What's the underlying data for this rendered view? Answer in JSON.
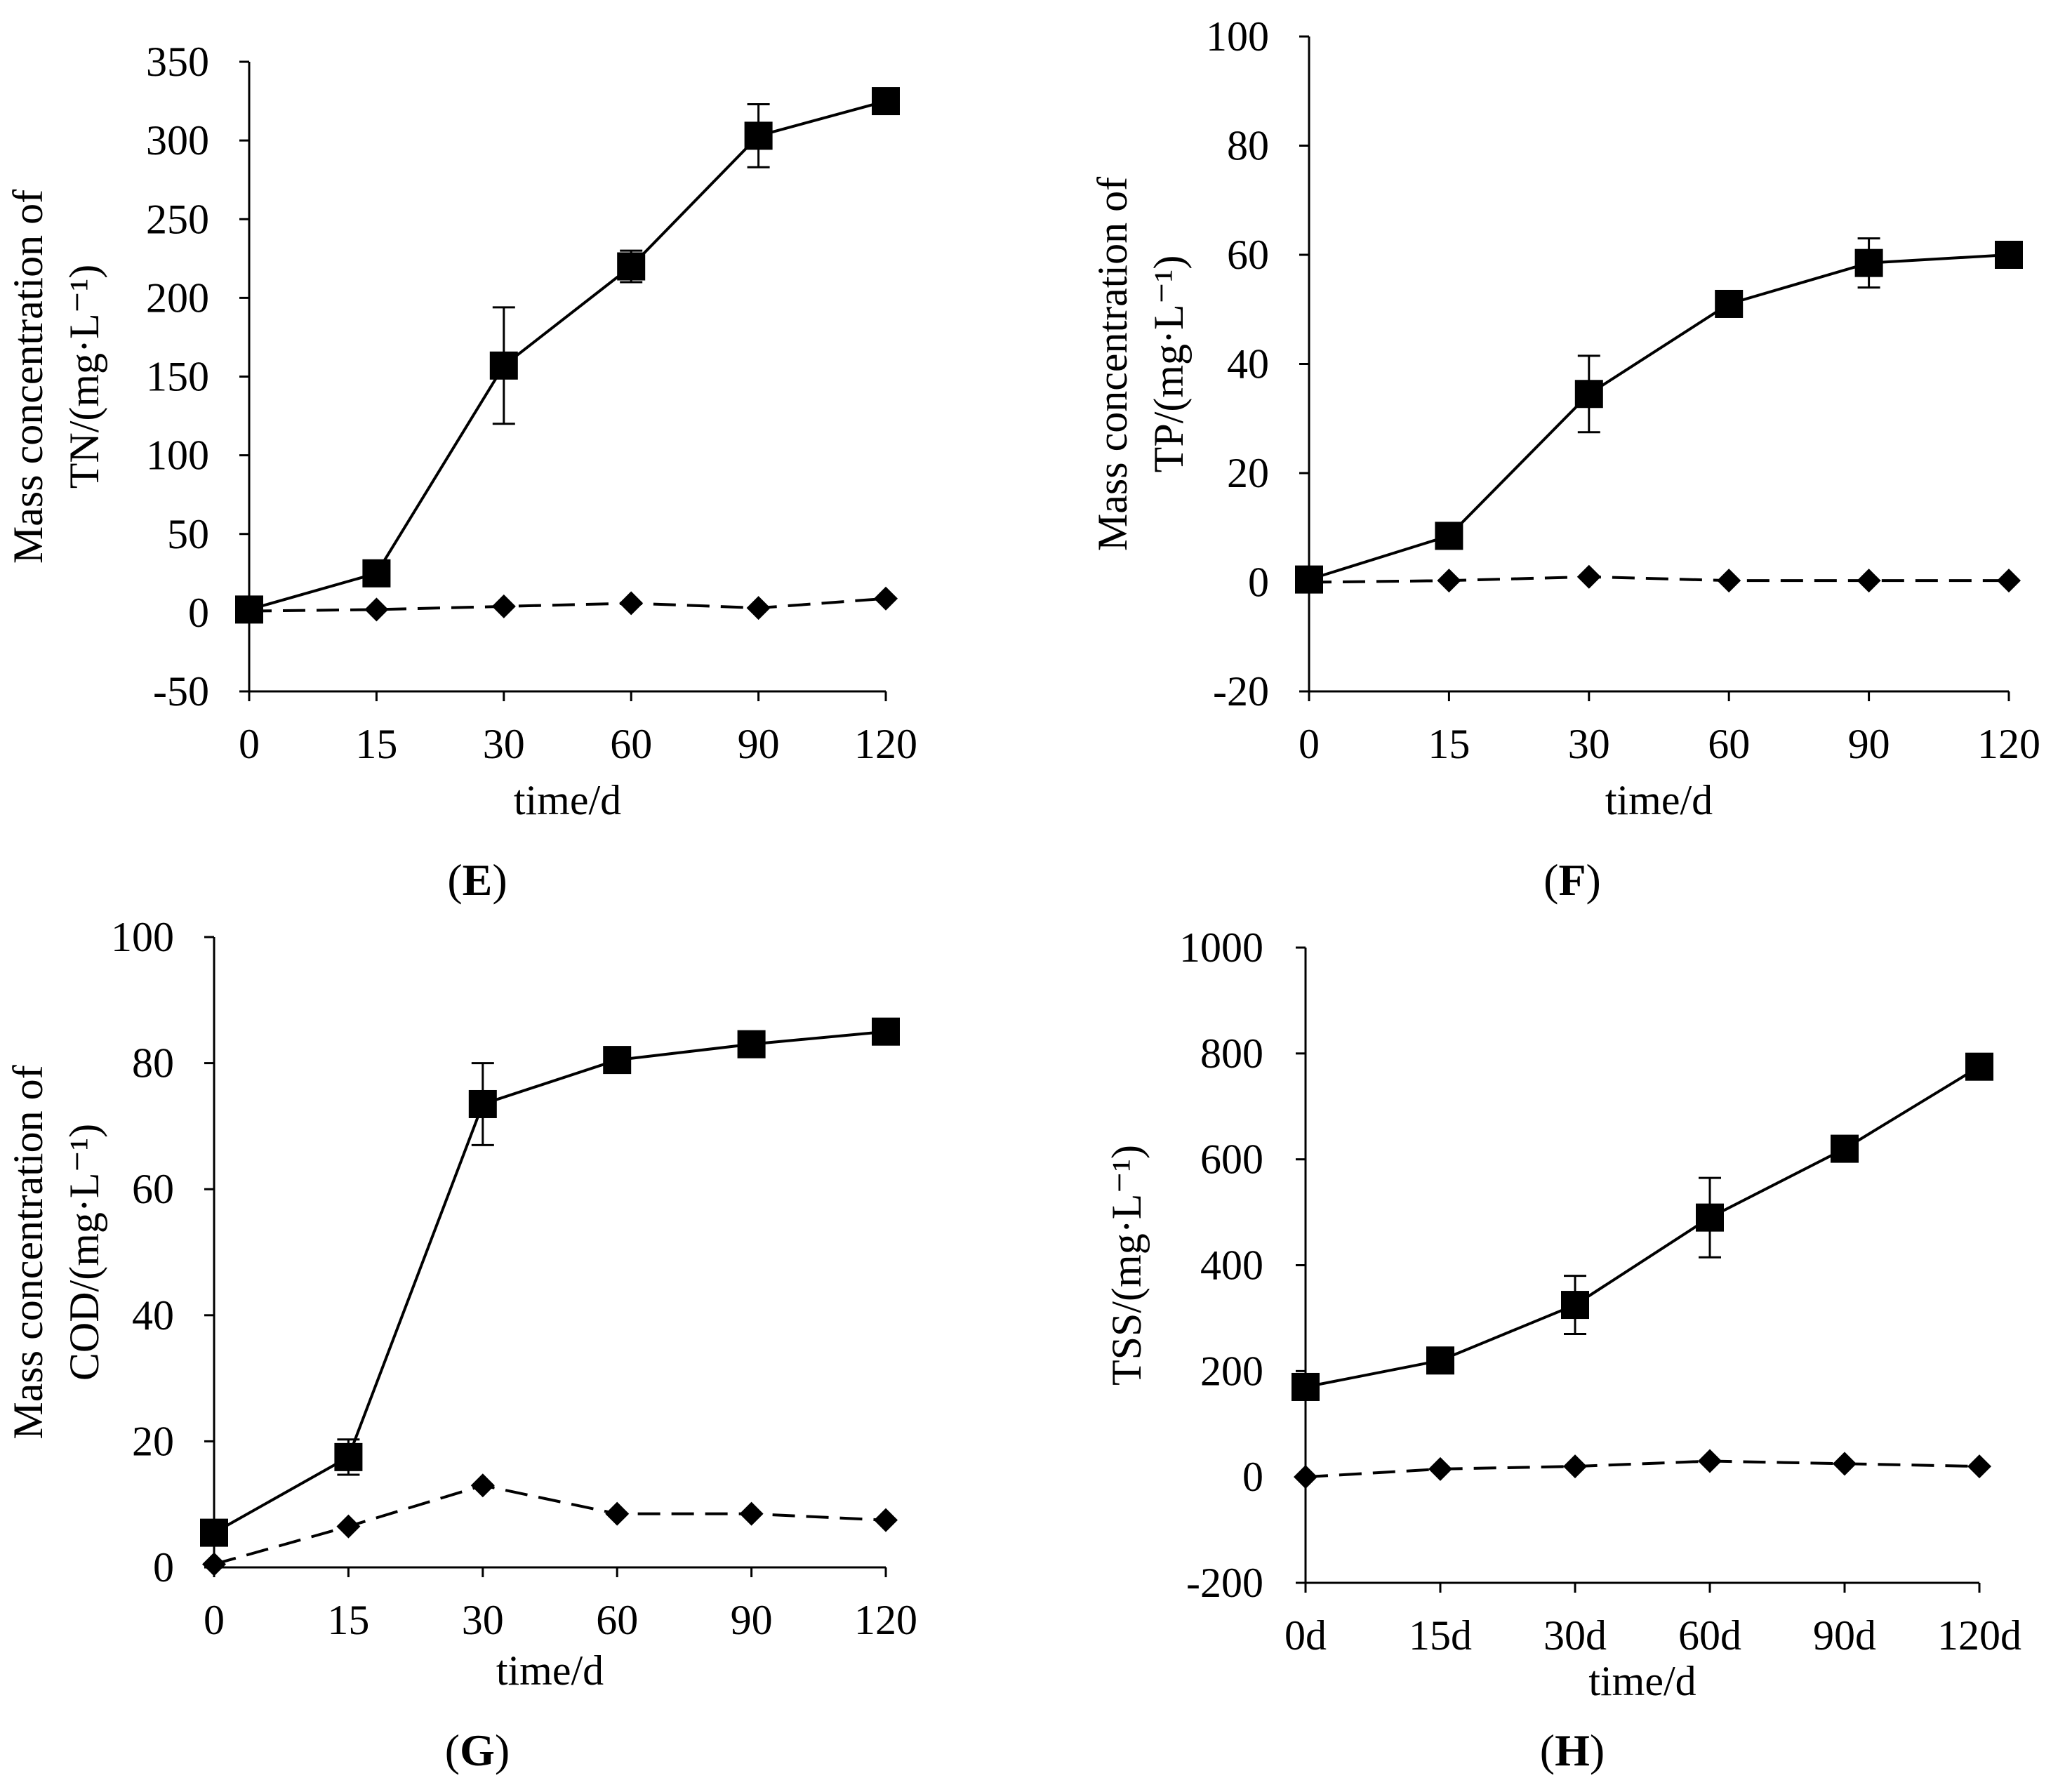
{
  "chart_data": [
    {
      "type": "line",
      "panel": "E",
      "categories": [
        "0",
        "15",
        "30",
        "60",
        "90",
        "120"
      ],
      "xlabel": "time/d",
      "ylabel_lines": [
        "Mass concentration of",
        "TN/(mg·L⁻¹)"
      ],
      "ylim": [
        -50,
        350
      ],
      "yticks": [
        "-50",
        "0",
        "50",
        "100",
        "150",
        "200",
        "250",
        "300",
        "350"
      ],
      "series": [
        {
          "name": "squares-solid",
          "marker": "square",
          "line": "solid",
          "values": [
            2,
            25,
            157,
            220,
            303,
            325
          ],
          "errors": [
            0,
            0,
            37,
            10,
            20,
            0
          ]
        },
        {
          "name": "diamonds-dashed",
          "marker": "diamond",
          "line": "dashed",
          "values": [
            1,
            2,
            4,
            6,
            3,
            9
          ],
          "errors": [
            0,
            0,
            0,
            0,
            0,
            0
          ]
        }
      ]
    },
    {
      "type": "line",
      "panel": "F",
      "categories": [
        "0",
        "15",
        "30",
        "60",
        "90",
        "120"
      ],
      "xlabel": "time/d",
      "ylabel_lines": [
        "Mass concentration of",
        "TP/(mg·L⁻¹)"
      ],
      "ylim": [
        -20,
        100
      ],
      "yticks": [
        "-20",
        "0",
        "20",
        "40",
        "60",
        "80",
        "100"
      ],
      "series": [
        {
          "name": "squares-solid",
          "marker": "square",
          "line": "solid",
          "values": [
            0.5,
            8.5,
            34.5,
            51,
            58.5,
            60
          ],
          "errors": [
            0,
            0,
            7,
            0,
            4.5,
            0
          ]
        },
        {
          "name": "diamonds-dashed",
          "marker": "diamond",
          "line": "dashed",
          "values": [
            0,
            0.3,
            1,
            0.3,
            0.3,
            0.3
          ],
          "errors": [
            0,
            0,
            0,
            0,
            0,
            0
          ]
        }
      ]
    },
    {
      "type": "line",
      "panel": "G",
      "categories": [
        "0",
        "15",
        "30",
        "60",
        "90",
        "120"
      ],
      "xlabel": "time/d",
      "ylabel_lines": [
        "Mass concentration of",
        "COD/(mg·L⁻¹)"
      ],
      "ylim": [
        0,
        100
      ],
      "yticks": [
        "0",
        "20",
        "40",
        "60",
        "80",
        "100"
      ],
      "series": [
        {
          "name": "squares-solid",
          "marker": "square",
          "line": "solid",
          "values": [
            5.5,
            17.5,
            73.5,
            80.5,
            83,
            85
          ],
          "errors": [
            0,
            2.8,
            6.5,
            0,
            0,
            1.5
          ]
        },
        {
          "name": "diamonds-dashed",
          "marker": "diamond",
          "line": "dashed",
          "values": [
            0.5,
            6.5,
            13,
            8.5,
            8.5,
            7.5
          ],
          "errors": [
            0,
            0,
            0,
            0,
            0,
            0
          ]
        }
      ]
    },
    {
      "type": "line",
      "panel": "H",
      "categories": [
        "0d",
        "15d",
        "30d",
        "60d",
        "90d",
        "120d"
      ],
      "xlabel": "time/d",
      "ylabel_lines": [
        "TSS/(mg·L⁻¹)"
      ],
      "ylim": [
        -200,
        1000
      ],
      "yticks": [
        "-200",
        "0",
        "200",
        "400",
        "600",
        "800",
        "1000"
      ],
      "series": [
        {
          "name": "squares-solid",
          "marker": "square",
          "line": "solid",
          "values": [
            170,
            220,
            325,
            490,
            620,
            775
          ],
          "errors": [
            0,
            0,
            55,
            75,
            0,
            0
          ]
        },
        {
          "name": "diamonds-dashed",
          "marker": "diamond",
          "line": "dashed",
          "values": [
            0,
            15,
            20,
            30,
            25,
            20
          ],
          "errors": [
            0,
            0,
            0,
            0,
            0,
            0
          ]
        }
      ]
    }
  ],
  "panels": {
    "E": {
      "open": "(",
      "letter": "E",
      "close": ")"
    },
    "F": {
      "open": "(",
      "letter": "F",
      "close": ")"
    },
    "G": {
      "open": "(",
      "letter": "G",
      "close": ")"
    },
    "H": {
      "open": "(",
      "letter": "H",
      "close": ")"
    }
  }
}
